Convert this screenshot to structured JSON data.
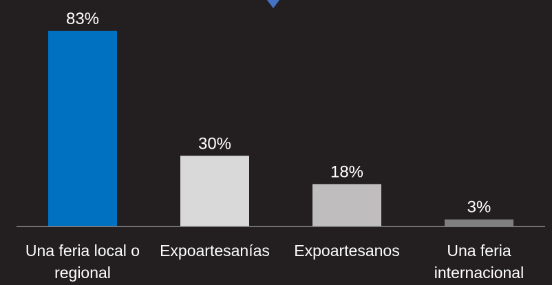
{
  "chart_data": {
    "type": "bar",
    "categories": [
      [
        "Una feria local o",
        "regional"
      ],
      [
        "Expoartesanías"
      ],
      [
        "Expoartesanos"
      ],
      [
        "Una feria",
        "internacional"
      ]
    ],
    "values": [
      83,
      30,
      18,
      3
    ],
    "value_labels": [
      "83%",
      "30%",
      "18%",
      "3%"
    ],
    "bar_colors": [
      "#0070c0",
      "#d9d9d9",
      "#bfbdbd",
      "#7f7f7f"
    ],
    "accent_color": "#4472c4",
    "background_color": "#231f20",
    "axis_color": "#8c8c8c",
    "ylim": [
      0,
      85
    ],
    "grid": false,
    "legend": "none"
  }
}
